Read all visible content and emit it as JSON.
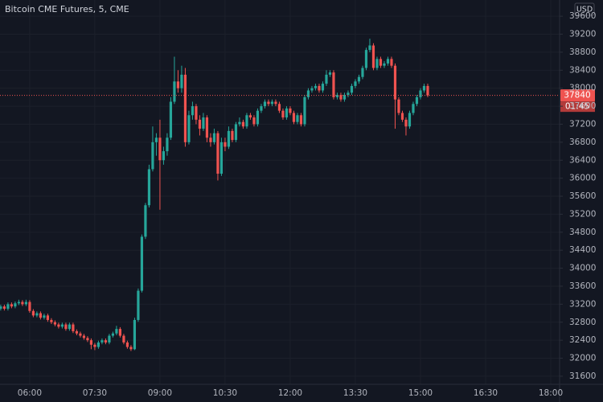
{
  "chart_data": {
    "type": "candlestick",
    "title": "Bitcoin CME Futures, 5, CME",
    "currency": "USD",
    "last_price": 37840,
    "countdown": "01:45",
    "up_color": "#26a69a",
    "down_color": "#ef5350",
    "grid": true,
    "xlim": [
      "05:19",
      "18:10"
    ],
    "xticks": [
      "06:00",
      "07:30",
      "09:00",
      "10:30",
      "12:00",
      "13:30",
      "15:00",
      "16:30",
      "18:00"
    ],
    "ylim": [
      31420,
      39960
    ],
    "yticks": [
      31600,
      32000,
      32400,
      32800,
      33200,
      33600,
      34000,
      34400,
      34800,
      35200,
      35600,
      36000,
      36400,
      36800,
      37200,
      37600,
      38000,
      38400,
      38800,
      39200,
      39600
    ],
    "x": [
      "05:20",
      "05:25",
      "05:30",
      "05:35",
      "05:40",
      "05:45",
      "05:50",
      "05:55",
      "06:00",
      "06:05",
      "06:10",
      "06:15",
      "06:20",
      "06:25",
      "06:30",
      "06:35",
      "06:40",
      "06:45",
      "06:50",
      "06:55",
      "07:00",
      "07:05",
      "07:10",
      "07:15",
      "07:20",
      "07:25",
      "07:30",
      "07:35",
      "07:40",
      "07:45",
      "07:50",
      "07:55",
      "08:00",
      "08:05",
      "08:10",
      "08:15",
      "08:20",
      "08:25",
      "08:30",
      "08:35",
      "08:40",
      "08:45",
      "08:50",
      "08:55",
      "09:00",
      "09:05",
      "09:10",
      "09:15",
      "09:20",
      "09:25",
      "09:30",
      "09:35",
      "09:40",
      "09:45",
      "09:50",
      "09:55",
      "10:00",
      "10:05",
      "10:10",
      "10:15",
      "10:20",
      "10:25",
      "10:30",
      "10:35",
      "10:40",
      "10:45",
      "10:50",
      "10:55",
      "11:00",
      "11:05",
      "11:10",
      "11:15",
      "11:20",
      "11:25",
      "11:30",
      "11:35",
      "11:40",
      "11:45",
      "11:50",
      "11:55",
      "12:00",
      "12:05",
      "12:10",
      "12:15",
      "12:20",
      "12:25",
      "12:30",
      "12:35",
      "12:40",
      "12:45",
      "12:50",
      "12:55",
      "13:00",
      "13:05",
      "13:10",
      "13:15",
      "13:20",
      "13:25",
      "13:30",
      "13:35",
      "13:40",
      "13:45",
      "13:50",
      "13:55",
      "14:00",
      "14:05",
      "14:10",
      "14:15",
      "14:20",
      "14:25",
      "14:30",
      "14:35",
      "14:40",
      "14:45",
      "14:50",
      "14:55",
      "15:00",
      "15:05",
      "15:10"
    ],
    "ohlc": [
      [
        33100,
        33190,
        33060,
        33150
      ],
      [
        33150,
        33190,
        33060,
        33100
      ],
      [
        33100,
        33240,
        33060,
        33200
      ],
      [
        33200,
        33240,
        33110,
        33150
      ],
      [
        33150,
        33260,
        33110,
        33220
      ],
      [
        33220,
        33300,
        33180,
        33250
      ],
      [
        33250,
        33290,
        33160,
        33200
      ],
      [
        33200,
        33300,
        33160,
        33250
      ],
      [
        33250,
        33290,
        33010,
        33050
      ],
      [
        33050,
        33090,
        32910,
        32950
      ],
      [
        32950,
        33040,
        32910,
        33000
      ],
      [
        33000,
        33040,
        32860,
        32900
      ],
      [
        32900,
        32990,
        32860,
        32950
      ],
      [
        32950,
        32990,
        32810,
        32850
      ],
      [
        32850,
        32890,
        32760,
        32800
      ],
      [
        32800,
        32840,
        32710,
        32750
      ],
      [
        32750,
        32790,
        32660,
        32700
      ],
      [
        32700,
        32790,
        32660,
        32750
      ],
      [
        32750,
        32790,
        32610,
        32650
      ],
      [
        32650,
        32790,
        32610,
        32750
      ],
      [
        32750,
        32790,
        32560,
        32600
      ],
      [
        32600,
        32640,
        32510,
        32550
      ],
      [
        32550,
        32590,
        32460,
        32500
      ],
      [
        32500,
        32540,
        32410,
        32450
      ],
      [
        32450,
        32490,
        32360,
        32400
      ],
      [
        32400,
        32440,
        32200,
        32300
      ],
      [
        32300,
        32340,
        32180,
        32250
      ],
      [
        32250,
        32390,
        32210,
        32350
      ],
      [
        32350,
        32440,
        32310,
        32400
      ],
      [
        32400,
        32440,
        32310,
        32350
      ],
      [
        32350,
        32540,
        32310,
        32500
      ],
      [
        32500,
        32590,
        32460,
        32550
      ],
      [
        32550,
        32720,
        32510,
        32650
      ],
      [
        32650,
        32690,
        32460,
        32500
      ],
      [
        32500,
        32540,
        32310,
        32350
      ],
      [
        32350,
        32390,
        32210,
        32250
      ],
      [
        32250,
        32290,
        32160,
        32200
      ],
      [
        32200,
        32900,
        32180,
        32850
      ],
      [
        32850,
        33550,
        32810,
        33500
      ],
      [
        33500,
        34750,
        33460,
        34700
      ],
      [
        34700,
        35450,
        34650,
        35400
      ],
      [
        35400,
        36300,
        35350,
        36200
      ],
      [
        36200,
        37150,
        36150,
        36800
      ],
      [
        36800,
        37000,
        36500,
        36900
      ],
      [
        36900,
        37300,
        35300,
        36400
      ],
      [
        36400,
        36700,
        36300,
        36600
      ],
      [
        36600,
        37000,
        36500,
        36900
      ],
      [
        36900,
        37800,
        36850,
        37700
      ],
      [
        37700,
        38700,
        37650,
        38150
      ],
      [
        38150,
        38400,
        37900,
        38000
      ],
      [
        38000,
        38500,
        37900,
        38300
      ],
      [
        38300,
        38450,
        36700,
        36800
      ],
      [
        36800,
        37500,
        36750,
        37400
      ],
      [
        37400,
        37700,
        37300,
        37600
      ],
      [
        37600,
        37650,
        37200,
        37300
      ],
      [
        37300,
        37400,
        36950,
        37100
      ],
      [
        37100,
        37450,
        37050,
        37350
      ],
      [
        37350,
        37400,
        36800,
        36900
      ],
      [
        36900,
        37000,
        36700,
        36800
      ],
      [
        36800,
        37100,
        36750,
        37000
      ],
      [
        37000,
        37050,
        35950,
        36100
      ],
      [
        36100,
        36900,
        36050,
        36800
      ],
      [
        36800,
        36900,
        36600,
        36700
      ],
      [
        36700,
        37150,
        36650,
        37050
      ],
      [
        37050,
        37100,
        36800,
        36850
      ],
      [
        36850,
        37250,
        36800,
        37200
      ],
      [
        37200,
        37350,
        37150,
        37250
      ],
      [
        37250,
        37300,
        37100,
        37150
      ],
      [
        37150,
        37450,
        37100,
        37400
      ],
      [
        37400,
        37450,
        37300,
        37350
      ],
      [
        37350,
        37400,
        37150,
        37200
      ],
      [
        37200,
        37550,
        37150,
        37500
      ],
      [
        37500,
        37650,
        37450,
        37600
      ],
      [
        37600,
        37750,
        37550,
        37700
      ],
      [
        37700,
        37750,
        37600,
        37650
      ],
      [
        37650,
        37750,
        37600,
        37700
      ],
      [
        37700,
        37750,
        37600,
        37650
      ],
      [
        37650,
        37700,
        37450,
        37500
      ],
      [
        37500,
        37550,
        37300,
        37350
      ],
      [
        37350,
        37600,
        37300,
        37550
      ],
      [
        37550,
        37600,
        37400,
        37450
      ],
      [
        37450,
        37500,
        37200,
        37250
      ],
      [
        37250,
        37450,
        37200,
        37400
      ],
      [
        37400,
        37450,
        37150,
        37200
      ],
      [
        37200,
        37850,
        37150,
        37800
      ],
      [
        37800,
        38000,
        37750,
        37950
      ],
      [
        37950,
        38050,
        37900,
        38000
      ],
      [
        38000,
        38100,
        37950,
        38050
      ],
      [
        38050,
        38100,
        37900,
        37950
      ],
      [
        37950,
        38150,
        37900,
        38100
      ],
      [
        38100,
        38400,
        38050,
        38300
      ],
      [
        38300,
        38400,
        38250,
        38350
      ],
      [
        38350,
        38400,
        37750,
        37800
      ],
      [
        37800,
        37900,
        37750,
        37850
      ],
      [
        37850,
        37900,
        37700,
        37750
      ],
      [
        37750,
        37900,
        37700,
        37850
      ],
      [
        37850,
        37950,
        37800,
        37900
      ],
      [
        37900,
        38100,
        37850,
        38050
      ],
      [
        38050,
        38200,
        38000,
        38150
      ],
      [
        38150,
        38300,
        38100,
        38250
      ],
      [
        38250,
        38500,
        38200,
        38450
      ],
      [
        38450,
        38900,
        38400,
        38850
      ],
      [
        38850,
        39100,
        38800,
        38950
      ],
      [
        38950,
        39000,
        38400,
        38450
      ],
      [
        38450,
        38700,
        38400,
        38650
      ],
      [
        38650,
        38700,
        38450,
        38500
      ],
      [
        38500,
        38600,
        38450,
        38550
      ],
      [
        38550,
        38700,
        38500,
        38650
      ],
      [
        38650,
        38700,
        38450,
        38500
      ],
      [
        38500,
        38550,
        37100,
        37750
      ],
      [
        37750,
        37800,
        37400,
        37450
      ],
      [
        37450,
        37500,
        37250,
        37300
      ],
      [
        37300,
        37350,
        36950,
        37150
      ],
      [
        37150,
        37500,
        37100,
        37450
      ],
      [
        37450,
        37700,
        37400,
        37650
      ],
      [
        37650,
        37850,
        37600,
        37800
      ],
      [
        37800,
        38000,
        37750,
        37950
      ],
      [
        37950,
        38100,
        37900,
        38050
      ],
      [
        38050,
        38100,
        37800,
        37840
      ]
    ]
  }
}
